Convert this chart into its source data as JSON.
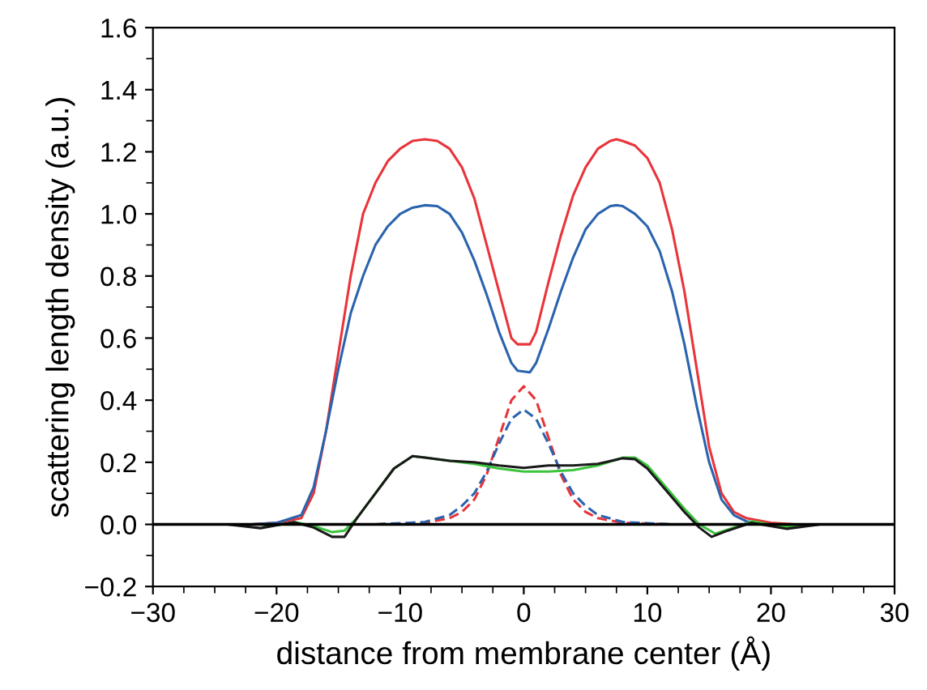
{
  "chart_data": {
    "type": "line",
    "xlabel": "distance from membrane center (Å)",
    "ylabel": "scattering length density (a.u.)",
    "xlim": [
      -30,
      30
    ],
    "xticks": [
      {
        "value": -30,
        "label": "−30"
      },
      {
        "value": -20,
        "label": "−20"
      },
      {
        "value": -10,
        "label": "−10"
      },
      0,
      10,
      20,
      30
    ],
    "ylim": [
      -0.2,
      1.6
    ],
    "yticks": [
      {
        "value": -0.2,
        "label": "−0.2"
      },
      {
        "value": 0,
        "label": "0.0"
      },
      {
        "value": 0.2,
        "label": "0.2"
      },
      {
        "value": 0.4,
        "label": "0.4"
      },
      {
        "value": 0.6,
        "label": "0.6"
      },
      {
        "value": 0.8,
        "label": "0.8"
      },
      {
        "value": 1.0,
        "label": "1.0"
      },
      {
        "value": 1.2,
        "label": "1.2"
      },
      {
        "value": 1.4,
        "label": "1.4"
      },
      {
        "value": 1.6,
        "label": "1.6"
      }
    ],
    "grid": false,
    "legend": false,
    "marker": "none",
    "ref_lines": [
      {
        "axis": "y",
        "value": 0,
        "color": "#000000",
        "line_style": "solid"
      }
    ],
    "series": [
      {
        "color": "#e8343a",
        "line_style": "solid",
        "x": [
          -30,
          -22,
          -20,
          -18,
          -17,
          -16,
          -15,
          -14,
          -13,
          -12,
          -11,
          -10,
          -9,
          -8,
          -7,
          -6,
          -5,
          -4,
          -3,
          -2,
          -1,
          -0.5,
          0.5,
          1,
          2,
          3,
          4,
          5,
          6,
          7,
          7.5,
          8,
          9,
          10,
          11,
          12,
          13,
          14,
          15,
          16,
          17,
          18,
          20,
          22,
          30
        ],
        "values": [
          0,
          0,
          0.005,
          0.02,
          0.1,
          0.3,
          0.55,
          0.8,
          1.0,
          1.1,
          1.17,
          1.21,
          1.235,
          1.24,
          1.235,
          1.21,
          1.15,
          1.05,
          0.9,
          0.75,
          0.6,
          0.58,
          0.58,
          0.62,
          0.78,
          0.93,
          1.06,
          1.15,
          1.21,
          1.235,
          1.24,
          1.235,
          1.22,
          1.18,
          1.1,
          0.95,
          0.75,
          0.5,
          0.25,
          0.1,
          0.04,
          0.02,
          0.005,
          0,
          0
        ]
      },
      {
        "color": "#2a63ad",
        "line_style": "solid",
        "x": [
          -30,
          -22,
          -20,
          -18,
          -17,
          -16,
          -15,
          -14,
          -13,
          -12,
          -11,
          -10,
          -9,
          -8,
          -7,
          -6,
          -5,
          -4,
          -3,
          -2,
          -1,
          -0.5,
          0.5,
          1,
          2,
          3,
          4,
          5,
          6,
          7,
          7.5,
          8,
          9,
          10,
          11,
          12,
          13,
          14,
          15,
          16,
          17,
          18,
          20,
          30
        ],
        "values": [
          0,
          0,
          0.005,
          0.03,
          0.12,
          0.3,
          0.5,
          0.68,
          0.8,
          0.9,
          0.96,
          1.0,
          1.02,
          1.028,
          1.025,
          1.0,
          0.94,
          0.85,
          0.74,
          0.62,
          0.52,
          0.495,
          0.49,
          0.52,
          0.63,
          0.75,
          0.86,
          0.95,
          1.0,
          1.025,
          1.028,
          1.025,
          1.0,
          0.96,
          0.88,
          0.75,
          0.58,
          0.38,
          0.2,
          0.08,
          0.03,
          0.01,
          0,
          0
        ]
      },
      {
        "color": "#e8343a",
        "line_style": "dashed",
        "x": [
          -30,
          -12,
          -8,
          -6,
          -5,
          -4,
          -3,
          -2,
          -1,
          0,
          1,
          2,
          3,
          4,
          5,
          6,
          8,
          12,
          30
        ],
        "values": [
          0,
          0,
          0.005,
          0.02,
          0.04,
          0.08,
          0.16,
          0.28,
          0.4,
          0.445,
          0.4,
          0.28,
          0.16,
          0.08,
          0.04,
          0.02,
          0.005,
          0,
          0
        ]
      },
      {
        "color": "#2a63ad",
        "line_style": "dashed",
        "x": [
          -30,
          -12,
          -8,
          -6,
          -5,
          -4,
          -3,
          -2,
          -1,
          0,
          1,
          2,
          3,
          4,
          5,
          6,
          8,
          12,
          30
        ],
        "values": [
          0,
          0,
          0.008,
          0.03,
          0.06,
          0.1,
          0.17,
          0.26,
          0.34,
          0.37,
          0.34,
          0.26,
          0.17,
          0.1,
          0.06,
          0.03,
          0.008,
          0,
          0
        ]
      },
      {
        "color": "#3cc43c",
        "line_style": "solid",
        "x": [
          -21,
          -18.5,
          -17,
          -15.5,
          -14.5,
          -13.5,
          -12,
          -10.5,
          -9,
          -8,
          -6,
          -4,
          -2,
          0,
          2,
          4,
          6,
          8,
          9,
          10,
          11.5,
          13,
          14.2,
          15.5,
          17,
          18.5,
          21,
          24,
          30
        ],
        "values": [
          -0.008,
          0.007,
          -0.005,
          -0.025,
          -0.02,
          0.02,
          0.1,
          0.18,
          0.22,
          0.215,
          0.205,
          0.195,
          0.18,
          0.17,
          0.17,
          0.175,
          0.19,
          0.215,
          0.215,
          0.19,
          0.12,
          0.05,
          0.0,
          -0.03,
          -0.01,
          0.01,
          -0.008,
          0,
          0
        ]
      },
      {
        "color": "#1a1a1a",
        "line_style": "solid",
        "x": [
          -30,
          -24,
          -21.3,
          -18.6,
          -17,
          -15.5,
          -14.5,
          -13.5,
          -12,
          -10.5,
          -9,
          -8,
          -6,
          -4,
          -2,
          0,
          2,
          4,
          6,
          8,
          9,
          10,
          11.5,
          13,
          14.2,
          15.2,
          16.5,
          18.4,
          21.3,
          24,
          30
        ],
        "values": [
          0,
          0,
          -0.012,
          0.007,
          -0.01,
          -0.04,
          -0.04,
          0.02,
          0.1,
          0.18,
          0.22,
          0.215,
          0.205,
          0.2,
          0.19,
          0.182,
          0.19,
          0.19,
          0.195,
          0.213,
          0.21,
          0.18,
          0.11,
          0.04,
          -0.01,
          -0.04,
          -0.02,
          0.005,
          -0.014,
          0,
          0
        ]
      }
    ]
  }
}
